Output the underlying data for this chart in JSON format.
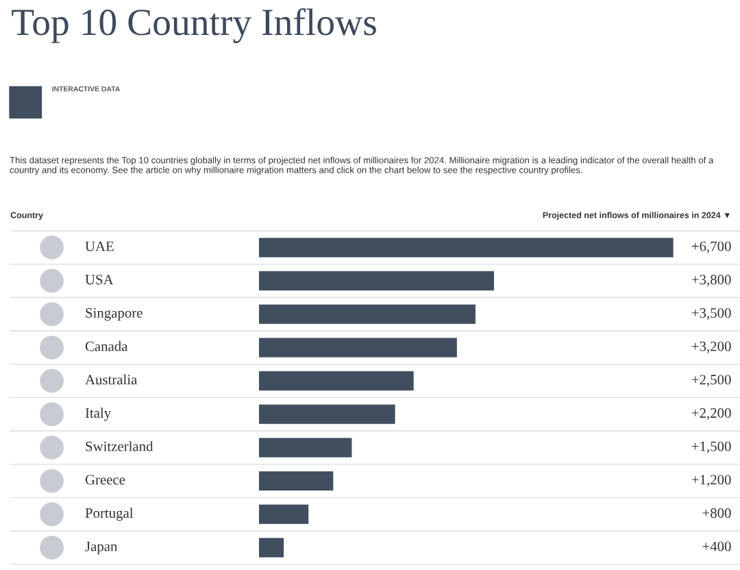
{
  "chart_data": {
    "type": "bar",
    "orientation": "horizontal",
    "title": "Top 10 Country Inflows",
    "subtitle": "INTERACTIVE DATA",
    "annotations": [
      "This dataset represents the Top 10 countries globally in terms of projected net inflows of millionaires for 2024. Millionaire migration is a leading indicator of the overall health of a country and its economy. See the article on why millionaire migration matters and click on the chart below to see the respective country profiles.",
      "Country"
    ],
    "xlabel": "Projected net inflows of millionaires in 2024 ▼",
    "categories": [
      "UAE",
      "USA",
      "Singapore",
      "Canada",
      "Australia",
      "Italy",
      "Switzerland",
      "Greece",
      "Portugal",
      "Japan"
    ],
    "values": [
      6700,
      3800,
      3500,
      3200,
      2500,
      2200,
      1500,
      1200,
      800,
      400
    ],
    "value_labels": [
      "+6,700",
      "+3,800",
      "+3,500",
      "+3,200",
      "+2,500",
      "+2,200",
      "+1,500",
      "+1,200",
      "+800",
      "+400"
    ],
    "color": "#414e60",
    "tick_labels": "y",
    "grid": false
  }
}
